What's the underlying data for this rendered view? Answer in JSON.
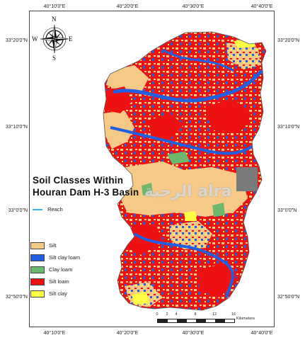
{
  "map": {
    "title_line1": "Soil Classes Within",
    "title_line2": "Houran Dam H-3 Basin",
    "watermark": "الرحبة alra",
    "reach_label": "Reach",
    "colors": {
      "silt": "#f7c987",
      "silt_clay_loam": "#1f5fe0",
      "clay_loam": "#6cb96e",
      "silt_loam": "#ee1111",
      "silt_clay": "#ffff44",
      "reach": "#3ab0e8",
      "urban": "#7a7a7a"
    },
    "legend": [
      {
        "label": "Silt",
        "color": "#f7c987"
      },
      {
        "label": "Silt clay loam",
        "color": "#1f5fe0"
      },
      {
        "label": "Clay loam",
        "color": "#6cb96e"
      },
      {
        "label": "Silt loam",
        "color": "#ee1111"
      },
      {
        "label": "Silt clay",
        "color": "#ffff44"
      }
    ],
    "compass": {
      "n": "N",
      "s": "S",
      "e": "E",
      "w": "W"
    },
    "coords": {
      "top": [
        "40°10'0\"E",
        "40°20'0\"E",
        "40°30'0\"E",
        "40°40'0\"E"
      ],
      "bottom": [
        "40°10'0\"E",
        "40°20'0\"E",
        "40°30'0\"E",
        "40°40'0\"E"
      ],
      "left": [
        "33°20'0\"N",
        "33°10'0\"N",
        "33°0'0\"N",
        "32°50'0\"N"
      ],
      "right": [
        "33°20'0\"N",
        "33°10'0\"N",
        "33°0'0\"N",
        "32°50'0\"N"
      ]
    },
    "scale": {
      "ticks": [
        "0",
        "2",
        "4",
        "8",
        "12",
        "16"
      ],
      "unit": "Kilometers"
    }
  }
}
